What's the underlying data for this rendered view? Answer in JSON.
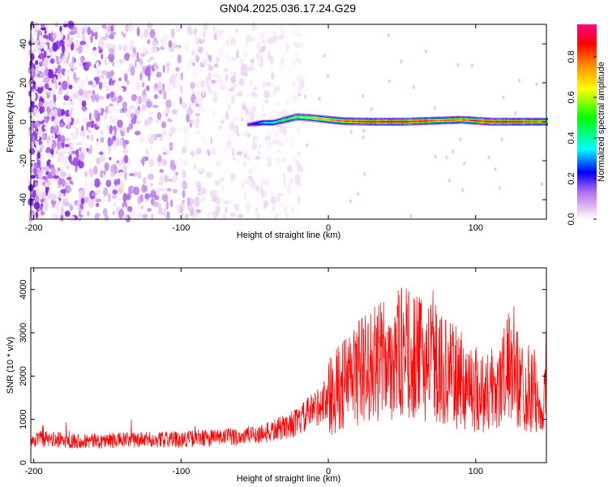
{
  "title": "GN04.2025.036.17.24.G29",
  "chart_data": [
    {
      "type": "heatmap",
      "xlabel": "Height of straight line (km)",
      "ylabel": "Frequency (Hz)",
      "xlim": [
        -202,
        148
      ],
      "ylim": [
        -50,
        50
      ],
      "x_ticks": [
        -200,
        -100,
        0,
        100
      ],
      "y_ticks": [
        -40,
        -20,
        0,
        20,
        40
      ],
      "colorbar": {
        "label": "Normalized spectral amplitude",
        "range": [
          0,
          0.96
        ],
        "ticks": [
          0.0,
          0.2,
          0.4,
          0.6,
          0.8
        ],
        "colormap": [
          "#ffffff",
          "#e6c8f0",
          "#8a2be2",
          "#0000ff",
          "#00ffff",
          "#00ff00",
          "#ffff00",
          "#ff8000",
          "#ff0000",
          "#ff00a0"
        ]
      },
      "noise_region": {
        "x_range": [
          -202,
          -25
        ],
        "amplitude_range": [
          0.0,
          0.25
        ]
      },
      "ridge": [
        {
          "x": -55,
          "frequency": -1.5,
          "amplitude": 0.25
        },
        {
          "x": -45,
          "frequency": -0.5,
          "amplitude": 0.45
        },
        {
          "x": -38,
          "frequency": -0.5,
          "amplitude": 0.5
        },
        {
          "x": -30,
          "frequency": 1.0,
          "amplitude": 0.6
        },
        {
          "x": -22,
          "frequency": 2.5,
          "amplitude": 0.65
        },
        {
          "x": -12,
          "frequency": 2.0,
          "amplitude": 0.7
        },
        {
          "x": 0,
          "frequency": 1.0,
          "amplitude": 0.8
        },
        {
          "x": 10,
          "frequency": 0.3,
          "amplitude": 0.85
        },
        {
          "x": 30,
          "frequency": 0.0,
          "amplitude": 0.92
        },
        {
          "x": 50,
          "frequency": 0.0,
          "amplitude": 0.95
        },
        {
          "x": 70,
          "frequency": 0.5,
          "amplitude": 0.85
        },
        {
          "x": 90,
          "frequency": 1.0,
          "amplitude": 0.85
        },
        {
          "x": 110,
          "frequency": 0.0,
          "amplitude": 0.95
        },
        {
          "x": 130,
          "frequency": 0.0,
          "amplitude": 0.9
        },
        {
          "x": 148,
          "frequency": 0.0,
          "amplitude": 0.8
        }
      ]
    },
    {
      "type": "line",
      "xlabel": "Height of straight line (km)",
      "ylabel": "SNR (10 * v/v)",
      "xlim": [
        -202,
        148
      ],
      "ylim": [
        0,
        4500
      ],
      "x_ticks": [
        -200,
        -100,
        0,
        100
      ],
      "y_ticks": [
        0,
        1000,
        2000,
        3000,
        4000
      ],
      "color": "#ff0000",
      "series": [
        {
          "x": [
            -202,
            -180,
            -160,
            -140,
            -120,
            -100,
            -80,
            -60,
            -40,
            -20,
            0,
            20,
            40,
            50,
            60,
            70,
            80,
            90,
            100,
            110,
            120,
            125,
            130,
            140,
            145,
            148
          ],
          "values": [
            550,
            520,
            500,
            520,
            530,
            540,
            580,
            600,
            700,
            950,
            1500,
            2100,
            2400,
            2550,
            2400,
            2350,
            2100,
            1900,
            1700,
            1600,
            2000,
            2400,
            1800,
            1700,
            900,
            2000
          ]
        }
      ]
    }
  ]
}
